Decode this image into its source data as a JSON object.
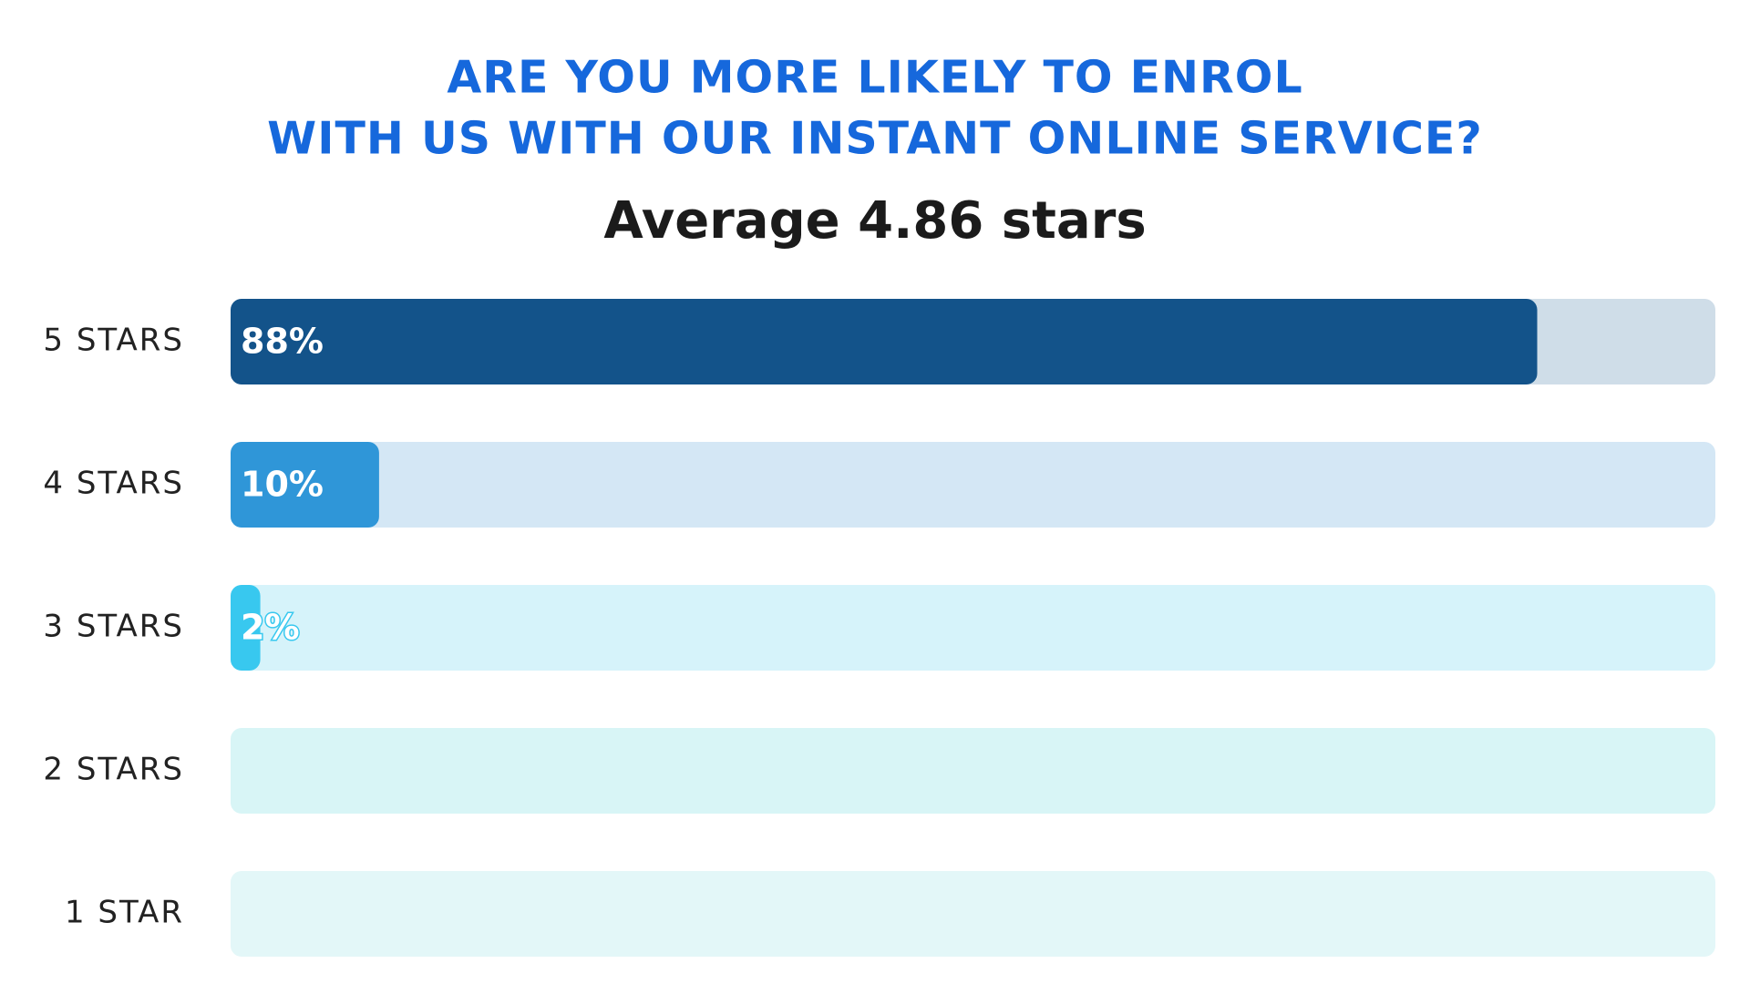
{
  "chart_data": {
    "type": "hbar",
    "title": [
      "ARE YOU MORE LIKELY TO ENROL",
      "WITH US WITH OUR INSTANT ONLINE SERVICE?"
    ],
    "subtitle": "Average 4.86 stars",
    "categories": [
      "5 STARS",
      "4 STARS",
      "3 STARS",
      "2 STARS",
      "1 STAR"
    ],
    "values": [
      88,
      10,
      2,
      0,
      0
    ],
    "value_labels": [
      "88%",
      "10%",
      "2%",
      null,
      null
    ],
    "colors": [
      "#13538a",
      "#2f96d8",
      "#38c8ef",
      "#38c8ef",
      "#38c8ef"
    ],
    "track_colors": [
      "#cfdde8",
      "#d4e7f5",
      "#d6f3fa",
      "#d8f5f6",
      "#e3f7f8"
    ],
    "xlim": [
      0,
      100
    ]
  }
}
